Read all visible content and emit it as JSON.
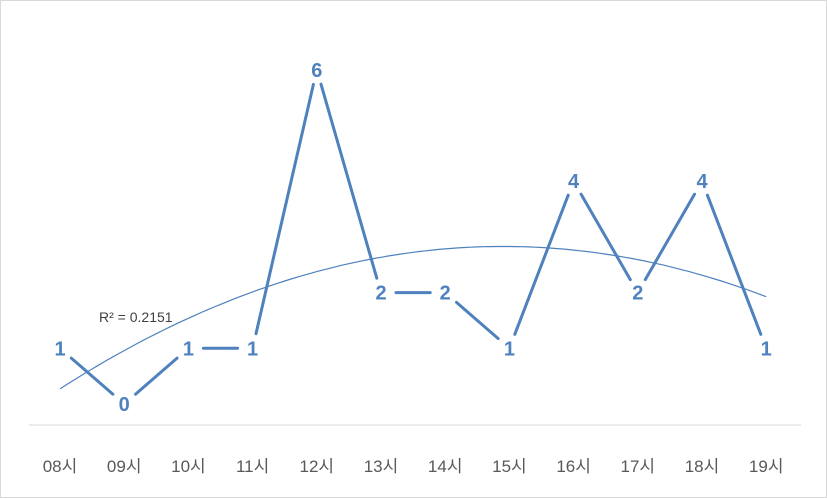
{
  "chart_data": {
    "type": "line",
    "title": "",
    "xlabel": "",
    "ylabel": "",
    "categories": [
      "08시",
      "09시",
      "10시",
      "11시",
      "12시",
      "13시",
      "14시",
      "15시",
      "16시",
      "17시",
      "18시",
      "19시"
    ],
    "series": [
      {
        "values": [
          1,
          0,
          1,
          1,
          6,
          2,
          2,
          1,
          4,
          2,
          4,
          1
        ],
        "color": "#4f81bd"
      }
    ],
    "trendline": {
      "type": "polynomial",
      "order": 2,
      "r2_label": "R² = 0.2151",
      "color": "#4f81bd"
    },
    "ylim": [
      0,
      6
    ],
    "grid": false,
    "legend": "none",
    "data_labels": true
  }
}
